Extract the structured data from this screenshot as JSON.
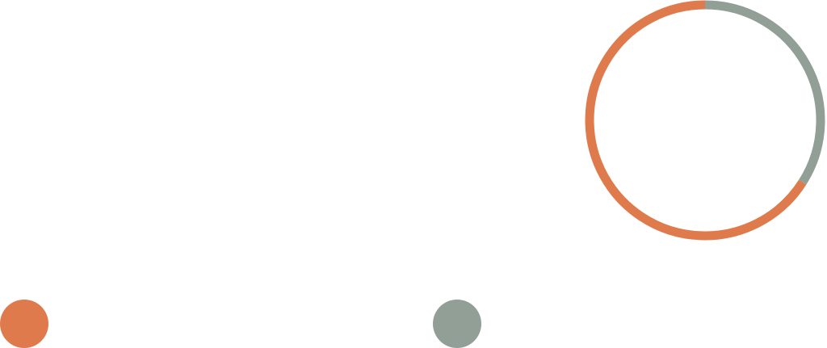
{
  "chart_data": {
    "type": "pie",
    "style": "donut-ring",
    "series": [
      {
        "value": 0.34,
        "color": "#919f97"
      },
      {
        "value": 0.66,
        "color": "#df7a4c"
      }
    ],
    "start_angle_deg": 0,
    "direction": "clockwise",
    "legend": "bottom",
    "labels_shown": false
  }
}
